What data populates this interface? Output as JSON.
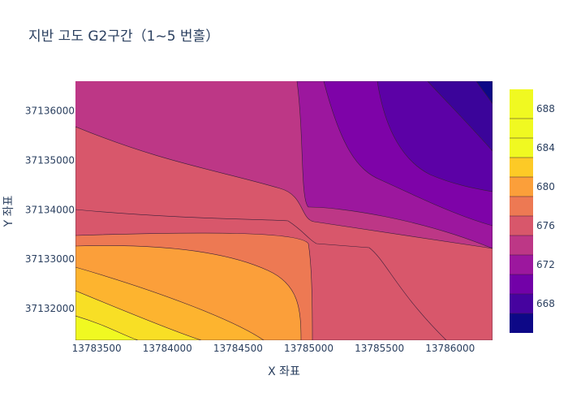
{
  "chart_data": {
    "type": "contour",
    "title": "지반 고도 G2구간（1~5 번홀）",
    "xlabel": "X 좌표",
    "ylabel": "Y 좌표",
    "xlim": [
      13783350,
      13786300
    ],
    "ylim": [
      37131360,
      37136600
    ],
    "x_ticks": [
      {
        "value": 13783500,
        "label": "13783500"
      },
      {
        "value": 13784000,
        "label": "13784000"
      },
      {
        "value": 13784500,
        "label": "13784500"
      },
      {
        "value": 13785000,
        "label": "13785000"
      },
      {
        "value": 13785500,
        "label": "13785500"
      },
      {
        "value": 13786000,
        "label": "13786000"
      }
    ],
    "y_ticks": [
      {
        "value": 37132000,
        "label": "37132000"
      },
      {
        "value": 37133000,
        "label": "37133000"
      },
      {
        "value": 37134000,
        "label": "37134000"
      },
      {
        "value": 37135000,
        "label": "37135000"
      },
      {
        "value": 37136000,
        "label": "37136000"
      }
    ],
    "colorbar": {
      "min": 665,
      "max": 690,
      "levels": [
        665,
        667,
        669,
        671,
        673,
        675,
        677,
        679,
        681,
        683,
        685,
        687,
        689
      ],
      "colors": [
        "#0d0887",
        "#46039f",
        "#7201a8",
        "#9c179e",
        "#bd3786",
        "#d8576b",
        "#ed7953",
        "#fb9f3a",
        "#fdca26",
        "#f0f921"
      ],
      "ticks": [
        {
          "value": 668,
          "label": "668"
        },
        {
          "value": 672,
          "label": "672"
        },
        {
          "value": 676,
          "label": "676"
        },
        {
          "value": 680,
          "label": "680"
        },
        {
          "value": 684,
          "label": "684"
        },
        {
          "value": 688,
          "label": "688"
        }
      ]
    },
    "colorscale": "plasma",
    "grid": false,
    "legend": "colorbar-right"
  }
}
